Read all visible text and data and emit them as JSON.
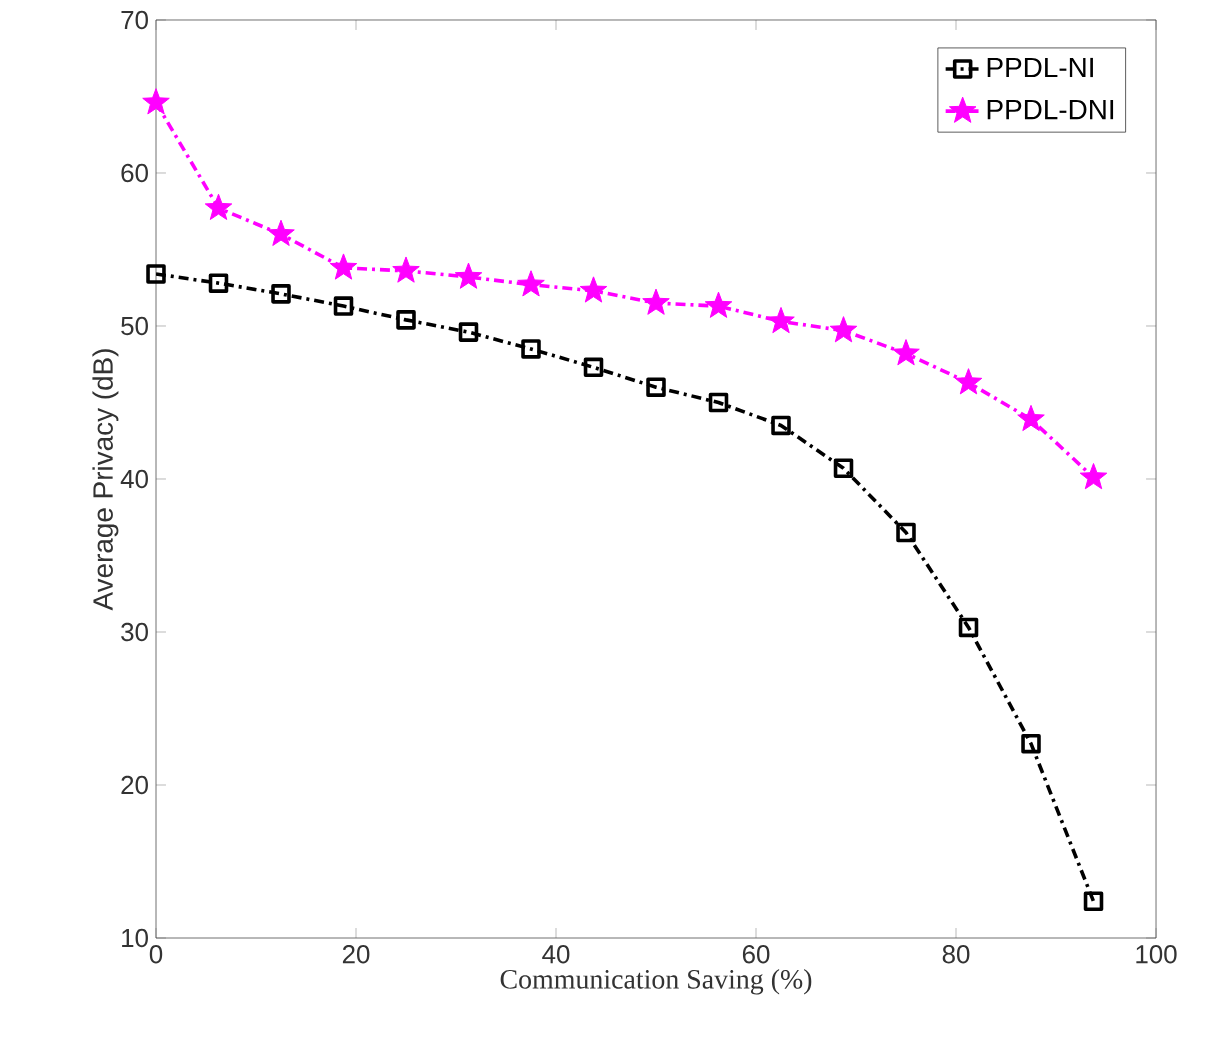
{
  "chart_data": {
    "type": "line",
    "xlabel": "Communication Saving (%)",
    "ylabel": "Average Privacy (dB)",
    "x": [
      0,
      6.25,
      12.5,
      18.75,
      25,
      31.25,
      37.5,
      43.75,
      50,
      56.25,
      62.5,
      68.75,
      75,
      81.25,
      87.5,
      93.75
    ],
    "series": [
      {
        "name": "PPDL-NI",
        "color": "#000000",
        "marker": "square",
        "values": [
          53.4,
          52.8,
          52.1,
          51.3,
          50.4,
          49.6,
          48.5,
          47.3,
          46.0,
          45.0,
          43.5,
          40.7,
          36.5,
          30.3,
          22.7,
          12.4
        ]
      },
      {
        "name": "PPDL-DNI",
        "color": "#ff00ff",
        "marker": "star",
        "values": [
          64.6,
          57.7,
          56.0,
          53.8,
          53.6,
          53.2,
          52.7,
          52.3,
          51.5,
          51.3,
          50.3,
          49.7,
          48.2,
          46.3,
          43.9,
          40.1
        ]
      }
    ],
    "xlim": [
      0,
      100
    ],
    "xticks": [
      0,
      20,
      40,
      60,
      80,
      100
    ],
    "ylim": [
      10,
      70
    ],
    "yticks": [
      10,
      20,
      30,
      40,
      50,
      60,
      70
    ],
    "grid": false,
    "legend": "top right",
    "line_style": "dashdot"
  }
}
